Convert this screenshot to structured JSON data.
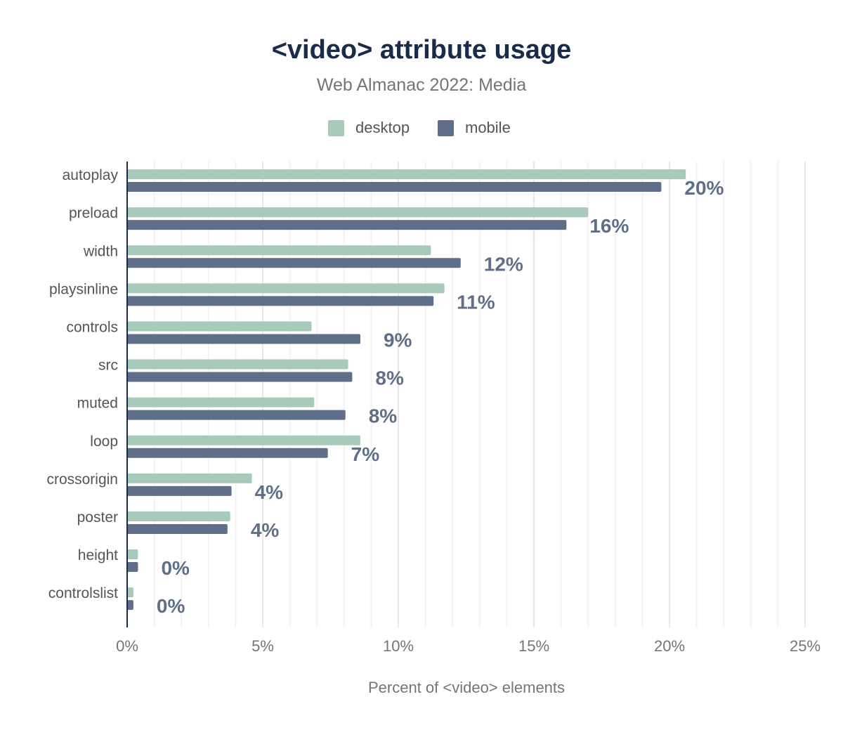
{
  "chart_data": {
    "type": "bar",
    "orientation": "horizontal",
    "title": "<video> attribute usage",
    "subtitle": "Web Almanac 2022: Media",
    "xlabel": "Percent of <video> elements",
    "ylabel": "",
    "xlim": [
      0,
      25
    ],
    "x_ticks": [
      "0%",
      "5%",
      "10%",
      "15%",
      "20%",
      "25%"
    ],
    "grid": true,
    "legend_position": "top-center",
    "categories": [
      "autoplay",
      "preload",
      "width",
      "playsinline",
      "controls",
      "src",
      "muted",
      "loop",
      "crossorigin",
      "poster",
      "height",
      "controlslist"
    ],
    "series": [
      {
        "name": "desktop",
        "color": "#a8cabb",
        "values": [
          20.6,
          17.0,
          11.2,
          11.7,
          6.8,
          8.15,
          6.9,
          8.6,
          4.6,
          3.8,
          0.4,
          0.23
        ]
      },
      {
        "name": "mobile",
        "color": "#5f6f8a",
        "values": [
          19.7,
          16.2,
          12.3,
          11.3,
          8.6,
          8.3,
          8.05,
          7.4,
          3.85,
          3.7,
          0.4,
          0.23
        ]
      }
    ],
    "data_labels": [
      "20%",
      "16%",
      "12%",
      "11%",
      "9%",
      "8%",
      "8%",
      "7%",
      "4%",
      "4%",
      "0%",
      "0%"
    ]
  }
}
